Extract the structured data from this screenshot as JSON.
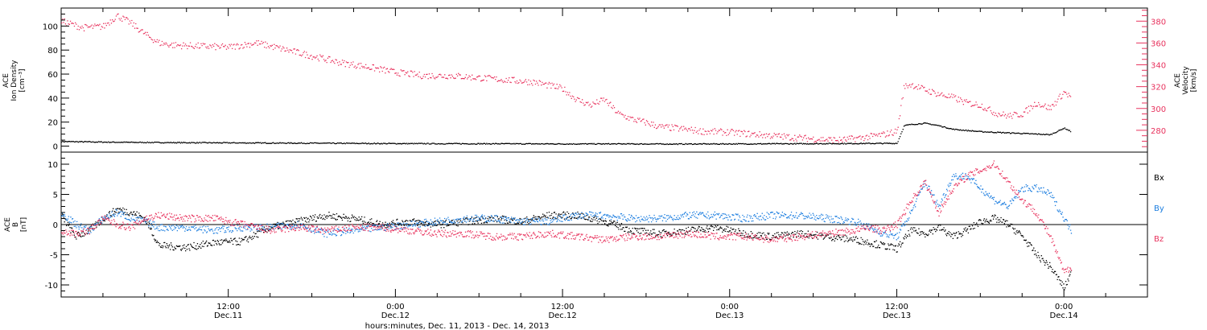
{
  "colors": {
    "black": "#000000",
    "pink": "#e8335e",
    "blue": "#1e7fe0"
  },
  "xaxis": {
    "title": "hours:minutes, Dec. 11, 2013 - Dec. 14, 2013",
    "ticks": [
      {
        "t": 12,
        "time": "12:00",
        "date": "Dec.11"
      },
      {
        "t": 24,
        "time": "0:00",
        "date": "Dec.12"
      },
      {
        "t": 36,
        "time": "12:00",
        "date": "Dec.12"
      },
      {
        "t": 48,
        "time": "0:00",
        "date": "Dec.13"
      },
      {
        "t": 60,
        "time": "12:00",
        "date": "Dec.13"
      },
      {
        "t": 72,
        "time": "0:00",
        "date": "Dec.14"
      }
    ]
  },
  "chart_data": [
    {
      "type": "scatter",
      "panel": "top",
      "xlim_hours": [
        0,
        78
      ],
      "left_axis": {
        "label_lines": [
          "ACE",
          "Ion Density"
        ],
        "unit": "[cm⁻³]",
        "ylim": [
          -5,
          115
        ],
        "ticks": [
          0,
          20,
          40,
          60,
          80,
          100
        ]
      },
      "right_axis": {
        "label_lines": [
          "ACE",
          "Velocity"
        ],
        "unit": "[km/s]",
        "ylim": [
          260,
          392
        ],
        "ticks": [
          280,
          300,
          320,
          340,
          360,
          380
        ]
      },
      "series": [
        {
          "axis": "left",
          "color": "black",
          "x": [
            0,
            4,
            8,
            12,
            16,
            20,
            24,
            28,
            32,
            36,
            40,
            44,
            48,
            52,
            56,
            58,
            60,
            60.5,
            61,
            62,
            63,
            64,
            66,
            68,
            70,
            71,
            72,
            72.5
          ],
          "y": [
            3.8,
            3.2,
            2.9,
            2.7,
            2.5,
            2.3,
            2.1,
            2.0,
            1.9,
            1.8,
            1.8,
            1.7,
            1.8,
            1.9,
            2.1,
            2.2,
            2.3,
            17,
            18,
            19,
            17,
            14,
            12,
            11,
            10,
            9.5,
            15,
            12
          ]
        },
        {
          "axis": "right",
          "color": "pink",
          "x": [
            0,
            1.5,
            3,
            4,
            5,
            6,
            7,
            8,
            10,
            12,
            14,
            16,
            18,
            20,
            22,
            24,
            26,
            28,
            30,
            32,
            34,
            36,
            37,
            38,
            39,
            40,
            41,
            42,
            43,
            44,
            46,
            48,
            50,
            52,
            54,
            56,
            58,
            59,
            60,
            60.5,
            61,
            62,
            63,
            64,
            65,
            66,
            67,
            68,
            69,
            70,
            71,
            72,
            72.5
          ],
          "y": [
            380,
            374,
            375,
            385,
            378,
            368,
            360,
            358,
            357,
            356,
            360,
            354,
            348,
            342,
            338,
            333,
            330,
            330,
            328,
            326,
            324,
            318,
            308,
            303,
            308,
            295,
            290,
            287,
            283,
            282,
            279,
            278,
            276,
            274,
            272,
            271,
            274,
            276,
            279,
            320,
            322,
            317,
            313,
            310,
            305,
            303,
            296,
            293,
            295,
            305,
            300,
            315,
            310
          ]
        }
      ]
    },
    {
      "type": "scatter",
      "panel": "bottom",
      "xlim_hours": [
        0,
        78
      ],
      "axis": {
        "label_lines": [
          "ACE",
          "B"
        ],
        "unit": "[nT]",
        "ylim": [
          -12,
          12
        ],
        "ticks": [
          -10,
          -5,
          0,
          5,
          10
        ]
      },
      "legend_placement": "right",
      "series": [
        {
          "name": "Bx",
          "color": "black",
          "x": [
            0,
            1,
            2,
            3,
            4,
            5,
            6,
            7,
            9,
            11,
            13,
            15,
            17,
            19,
            21,
            23,
            25,
            27,
            29,
            31,
            33,
            35,
            37,
            39,
            41,
            43,
            45,
            47,
            49,
            51,
            53,
            55,
            57,
            58,
            59,
            60,
            61,
            62,
            63,
            64,
            65,
            66,
            67,
            68,
            69,
            70,
            71,
            72,
            72.5
          ],
          "y": [
            1.5,
            -2,
            -1,
            1,
            2.5,
            2,
            1,
            -3.5,
            -3.8,
            -3,
            -2.8,
            -0.5,
            0.5,
            1.5,
            1,
            0,
            0.5,
            0,
            0.5,
            1,
            0.5,
            1.5,
            1.5,
            0.5,
            -1,
            -1.5,
            -1,
            -0.5,
            -1.5,
            -2,
            -1.5,
            -2,
            -2.5,
            -3,
            -3.5,
            -4,
            -1,
            -1.5,
            -0.5,
            -2,
            -1,
            0.5,
            1,
            0,
            -2,
            -5,
            -7,
            -10.5,
            -8
          ]
        },
        {
          "name": "By",
          "color": "blue",
          "x": [
            0,
            1,
            2,
            3,
            4,
            5,
            6,
            7,
            9,
            11,
            13,
            15,
            17,
            19,
            21,
            23,
            25,
            27,
            29,
            31,
            33,
            35,
            37,
            39,
            41,
            43,
            45,
            47,
            49,
            51,
            53,
            55,
            57,
            58,
            59,
            60,
            61,
            62,
            63,
            64,
            65,
            66,
            67,
            68,
            69,
            70,
            71,
            72,
            72.5
          ],
          "y": [
            2,
            0,
            -1,
            1,
            2,
            1,
            0.5,
            -0.5,
            -0.5,
            -1,
            -0.5,
            -0.5,
            0,
            -1.5,
            -1,
            -0.5,
            0,
            0.5,
            1,
            1,
            0.5,
            0.5,
            1.5,
            1.5,
            1,
            1,
            1.5,
            1.5,
            1,
            1.5,
            1.5,
            1,
            0.5,
            -0.5,
            -1.5,
            -2,
            2,
            7,
            3,
            8,
            8,
            6,
            4,
            3,
            6,
            6,
            5,
            1,
            -1
          ]
        },
        {
          "name": "Bz",
          "color": "pink",
          "x": [
            0,
            1,
            2,
            3,
            4,
            5,
            6,
            7,
            9,
            11,
            13,
            15,
            17,
            19,
            21,
            23,
            25,
            27,
            29,
            31,
            33,
            35,
            37,
            39,
            41,
            43,
            45,
            47,
            49,
            51,
            53,
            55,
            57,
            58,
            59,
            60,
            61,
            62,
            63,
            64,
            65,
            66,
            67,
            68,
            69,
            70,
            71,
            72,
            72.5
          ],
          "y": [
            -1,
            -1.5,
            -1,
            1,
            0,
            -0.5,
            1,
            1.5,
            1,
            1,
            0,
            -1,
            -0.5,
            -1,
            -0.5,
            -0.5,
            -1,
            -1.5,
            -1.5,
            -2,
            -2,
            -1.5,
            -2,
            -2.5,
            -2,
            -2,
            -1.5,
            -2,
            -2,
            -2.5,
            -2,
            -1.5,
            -1,
            -0.5,
            -1,
            0,
            4,
            7,
            2,
            6,
            8,
            9,
            10,
            7,
            4,
            2,
            -2,
            -8,
            -7
          ]
        }
      ]
    }
  ]
}
